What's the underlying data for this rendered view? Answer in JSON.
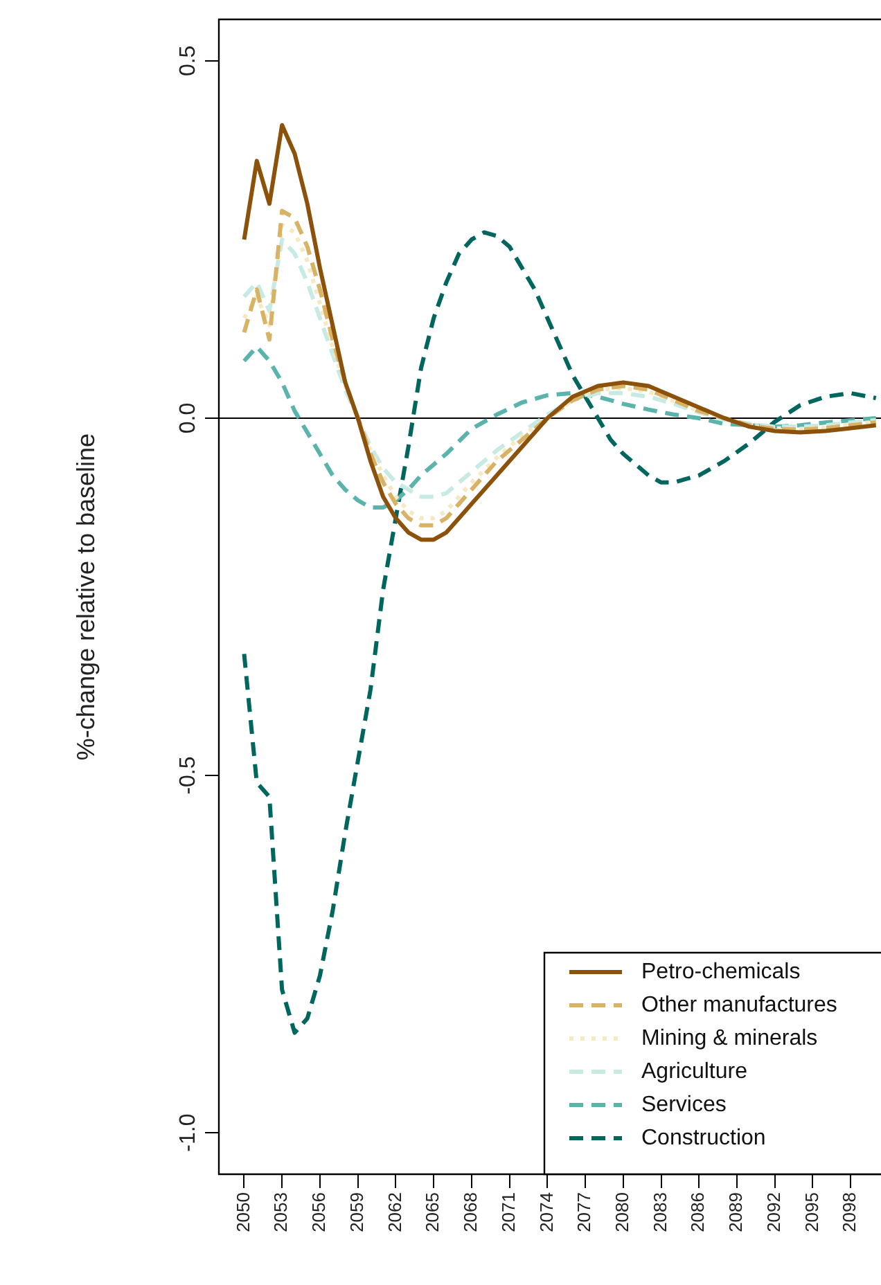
{
  "chart_data": {
    "type": "line",
    "ylabel": "%-change relative to baseline",
    "xlim": [
      2048,
      2100.4
    ],
    "ylim": [
      -1.058,
      0.558
    ],
    "xticks": [
      2050,
      2053,
      2056,
      2059,
      2062,
      2065,
      2068,
      2071,
      2074,
      2077,
      2080,
      2083,
      2086,
      2089,
      2092,
      2095,
      2098
    ],
    "yticks": [
      {
        "value": -1,
        "label": "-1.0"
      },
      {
        "value": -0.5,
        "label": "-0.5"
      },
      {
        "value": 0,
        "label": "0.0"
      },
      {
        "value": 0.5,
        "label": "0.5"
      }
    ],
    "grid": false,
    "legend": "bottom right",
    "marker": "none",
    "ref_lines": [
      {
        "axis": "y",
        "value": 0,
        "color": "#000000",
        "line_style": "solid"
      }
    ],
    "series": [
      {
        "name": "Petro-chemicals",
        "color": "#8c510a",
        "line_style": "solid",
        "x": [
          2050,
          2051,
          2052,
          2053,
          2054,
          2055,
          2056,
          2057,
          2058,
          2059,
          2060,
          2061,
          2062,
          2063,
          2064,
          2065,
          2066,
          2067,
          2068,
          2070,
          2072,
          2074,
          2076,
          2078,
          2080,
          2082,
          2084,
          2086,
          2088,
          2090,
          2092,
          2094,
          2096,
          2098,
          2100
        ],
        "values": [
          0.25,
          0.36,
          0.3,
          0.41,
          0.37,
          0.3,
          0.21,
          0.13,
          0.05,
          0.0,
          -0.06,
          -0.11,
          -0.14,
          -0.16,
          -0.17,
          -0.17,
          -0.16,
          -0.14,
          -0.12,
          -0.08,
          -0.04,
          0.0,
          0.03,
          0.045,
          0.05,
          0.045,
          0.03,
          0.015,
          0.0,
          -0.012,
          -0.018,
          -0.02,
          -0.018,
          -0.014,
          -0.01
        ]
      },
      {
        "name": "Other manufactures",
        "color": "#d8b365",
        "line_style": "dashed",
        "x": [
          2050,
          2051,
          2052,
          2053,
          2054,
          2055,
          2056,
          2057,
          2058,
          2059,
          2060,
          2061,
          2062,
          2063,
          2064,
          2065,
          2066,
          2067,
          2068,
          2070,
          2072,
          2074,
          2076,
          2078,
          2080,
          2082,
          2084,
          2086,
          2088,
          2090,
          2092,
          2094,
          2096,
          2098,
          2100
        ],
        "values": [
          0.12,
          0.18,
          0.11,
          0.29,
          0.28,
          0.24,
          0.18,
          0.11,
          0.05,
          0.0,
          -0.05,
          -0.09,
          -0.12,
          -0.14,
          -0.15,
          -0.15,
          -0.14,
          -0.12,
          -0.1,
          -0.06,
          -0.03,
          0.0,
          0.025,
          0.04,
          0.045,
          0.04,
          0.025,
          0.01,
          0.0,
          -0.01,
          -0.015,
          -0.016,
          -0.014,
          -0.01,
          -0.006
        ]
      },
      {
        "name": "Mining & minerals",
        "color": "#f6e8c3",
        "line_style": "dotted",
        "x": [
          2050,
          2051,
          2052,
          2053,
          2054,
          2055,
          2056,
          2057,
          2058,
          2059,
          2060,
          2061,
          2062,
          2063,
          2064,
          2065,
          2066,
          2067,
          2068,
          2070,
          2072,
          2074,
          2076,
          2078,
          2080,
          2082,
          2084,
          2086,
          2088,
          2090,
          2092,
          2094,
          2096,
          2098,
          2100
        ],
        "values": [
          0.14,
          0.17,
          0.13,
          0.27,
          0.26,
          0.22,
          0.16,
          0.1,
          0.045,
          0.0,
          -0.045,
          -0.08,
          -0.11,
          -0.13,
          -0.14,
          -0.14,
          -0.13,
          -0.11,
          -0.09,
          -0.055,
          -0.025,
          0.0,
          0.025,
          0.04,
          0.042,
          0.037,
          0.024,
          0.01,
          0.0,
          -0.01,
          -0.014,
          -0.015,
          -0.013,
          -0.009,
          -0.005
        ]
      },
      {
        "name": "Agriculture",
        "color": "#c7eae5",
        "line_style": "dashed",
        "x": [
          2050,
          2051,
          2052,
          2053,
          2054,
          2055,
          2056,
          2057,
          2058,
          2059,
          2060,
          2061,
          2062,
          2063,
          2064,
          2065,
          2066,
          2067,
          2068,
          2070,
          2072,
          2074,
          2076,
          2078,
          2080,
          2082,
          2084,
          2086,
          2088,
          2090,
          2092,
          2094,
          2096,
          2098,
          2100
        ],
        "values": [
          0.17,
          0.19,
          0.15,
          0.25,
          0.23,
          0.19,
          0.14,
          0.09,
          0.04,
          0.0,
          -0.04,
          -0.07,
          -0.09,
          -0.1,
          -0.11,
          -0.11,
          -0.105,
          -0.09,
          -0.075,
          -0.045,
          -0.02,
          0.005,
          0.025,
          0.035,
          0.035,
          0.03,
          0.02,
          0.008,
          -0.002,
          -0.008,
          -0.012,
          -0.012,
          -0.01,
          -0.006,
          -0.003
        ]
      },
      {
        "name": "Services",
        "color": "#5ab4ac",
        "line_style": "dashed",
        "x": [
          2050,
          2051,
          2052,
          2053,
          2054,
          2055,
          2056,
          2057,
          2058,
          2059,
          2060,
          2061,
          2062,
          2063,
          2064,
          2066,
          2068,
          2070,
          2072,
          2074,
          2076,
          2078,
          2080,
          2082,
          2084,
          2086,
          2088,
          2090,
          2092,
          2094,
          2096,
          2098,
          2100
        ],
        "values": [
          0.08,
          0.1,
          0.08,
          0.05,
          0.01,
          -0.02,
          -0.05,
          -0.08,
          -0.1,
          -0.115,
          -0.125,
          -0.125,
          -0.115,
          -0.1,
          -0.08,
          -0.05,
          -0.015,
          0.005,
          0.022,
          0.032,
          0.035,
          0.03,
          0.02,
          0.012,
          0.005,
          0.0,
          -0.008,
          -0.01,
          -0.012,
          -0.01,
          -0.006,
          -0.003,
          0.0
        ]
      },
      {
        "name": "Construction",
        "color": "#01665e",
        "line_style": "dashed",
        "x": [
          2050,
          2051,
          2052,
          2053,
          2054,
          2055,
          2056,
          2057,
          2058,
          2059,
          2060,
          2061,
          2062,
          2063,
          2064,
          2065,
          2066,
          2067,
          2068,
          2069,
          2070,
          2071,
          2072,
          2073,
          2074,
          2075,
          2076,
          2077,
          2078,
          2079,
          2080,
          2081,
          2082,
          2083,
          2084,
          2085,
          2086,
          2088,
          2090,
          2092,
          2094,
          2096,
          2098,
          2100
        ],
        "values": [
          -0.33,
          -0.51,
          -0.53,
          -0.8,
          -0.86,
          -0.84,
          -0.78,
          -0.69,
          -0.58,
          -0.48,
          -0.38,
          -0.24,
          -0.14,
          -0.04,
          0.07,
          0.14,
          0.19,
          0.23,
          0.25,
          0.26,
          0.255,
          0.24,
          0.21,
          0.18,
          0.14,
          0.1,
          0.06,
          0.03,
          0.0,
          -0.03,
          -0.05,
          -0.065,
          -0.08,
          -0.09,
          -0.09,
          -0.085,
          -0.08,
          -0.06,
          -0.035,
          -0.005,
          0.018,
          0.03,
          0.035,
          0.028
        ]
      }
    ]
  }
}
